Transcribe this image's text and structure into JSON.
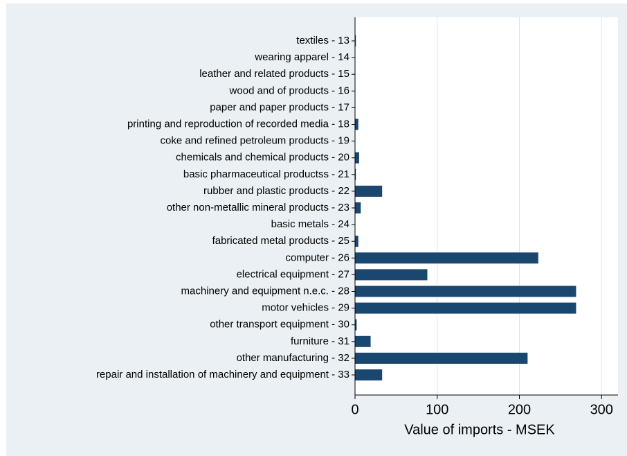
{
  "chart_data": {
    "type": "hbar",
    "x_label": "Value of imports - MSEK",
    "categories": [
      "textiles - 13",
      "wearing apparel - 14",
      "leather and related products - 15",
      "wood and of products  - 16",
      "paper and paper products - 17",
      "printing and reproduction of recorded media - 18",
      "coke and refined petroleum products - 19",
      "chemicals and chemical products - 20",
      "basic pharmaceutical productss - 21",
      "rubber and plastic products - 22",
      "other non-metallic mineral products - 23",
      "basic metals - 24",
      "fabricated metal products - 25",
      "computer - 26",
      "electrical equipment - 27",
      "machinery and equipment n.e.c. - 28",
      "motor vehicles - 29",
      "other transport equipment - 30",
      "furniture - 31",
      "other manufacturing - 32",
      "repair and installation of machinery and equipment - 33"
    ],
    "values": [
      1,
      0,
      0,
      0,
      0,
      4,
      0,
      5,
      1,
      33,
      7,
      0,
      4,
      223,
      88,
      269,
      269,
      2,
      19,
      210,
      33
    ],
    "color": "#1a476f",
    "xlim": [
      0,
      320
    ],
    "xticks": [
      0,
      100,
      200,
      300
    ],
    "grid": true
  }
}
